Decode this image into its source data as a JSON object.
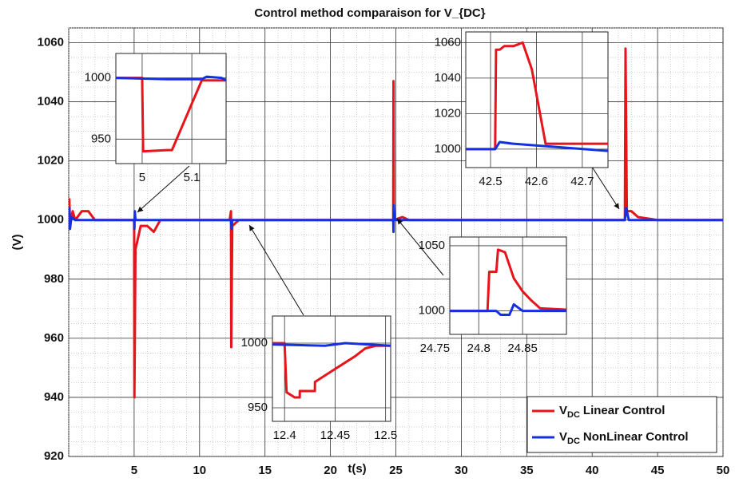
{
  "chart_data": [
    {
      "type": "line",
      "title": "Control method comparaison for V_{DC}",
      "xlabel": "t(s)",
      "ylabel": "(V)",
      "legend_symbol": {
        "main": "V",
        "sub": "DC"
      },
      "legend": "lower right",
      "grid": true,
      "xlim": [
        0,
        50
      ],
      "ylim": [
        920,
        1065
      ],
      "xticks": [
        5,
        10,
        15,
        20,
        25,
        30,
        35,
        40,
        45,
        50
      ],
      "yticks": [
        920,
        940,
        960,
        980,
        1000,
        1020,
        1040,
        1060
      ],
      "series": [
        {
          "name": "Linear Control",
          "color": "#e8141b",
          "x": [
            0,
            0.05,
            0.1,
            0.3,
            0.5,
            1,
            1.5,
            2,
            4.9,
            5,
            5.02,
            5.1,
            5.5,
            6,
            6.5,
            7,
            12.3,
            12.4,
            12.42,
            12.5,
            13,
            24.8,
            24.82,
            24.85,
            25.5,
            26,
            42.5,
            42.55,
            42.65,
            43,
            43.5,
            45,
            50
          ],
          "values": [
            1000,
            1007,
            998,
            1003,
            1000,
            1003,
            1003,
            1000,
            1000,
            1000,
            940,
            990,
            998,
            998,
            996,
            1000,
            1000,
            1003,
            957,
            998,
            1000,
            1000,
            1047,
            1000,
            1001,
            1000,
            1000,
            1058,
            1003,
            1003,
            1001,
            1000,
            1000
          ]
        },
        {
          "name": "NonLinear Control",
          "color": "#1530e0",
          "x": [
            0,
            0.05,
            0.1,
            0.2,
            0.5,
            5,
            5.02,
            5.05,
            5.1,
            12.4,
            12.45,
            12.5,
            24.8,
            24.82,
            24.85,
            24.9,
            42.5,
            42.6,
            42.8,
            50
          ],
          "values": [
            1000,
            1004,
            997,
            1001,
            1000,
            1000,
            997,
            1003,
            1000,
            1000,
            997,
            1000,
            1000,
            996,
            1005,
            1000,
            1000,
            1004,
            1000,
            1000
          ]
        }
      ]
    },
    {
      "type": "line",
      "xlim": [
        4.947,
        5.169
      ],
      "ylim": [
        930,
        1020
      ],
      "xticks": [
        5,
        5.1
      ],
      "yticks": [
        950,
        1000
      ],
      "grid": true,
      "series": [
        {
          "color": "#e8141b",
          "x": [
            4.947,
            5,
            5.002,
            5.05,
            5.06,
            5.12,
            5.169
          ],
          "values": [
            1000,
            1000,
            940,
            941,
            941,
            998,
            998
          ]
        },
        {
          "color": "#1530e0",
          "x": [
            4.947,
            5.05,
            5.12,
            5.13,
            5.16,
            5.169
          ],
          "values": [
            1000,
            999,
            999,
            1001,
            1000,
            998
          ]
        }
      ]
    },
    {
      "type": "line",
      "xlim": [
        42.446,
        42.756
      ],
      "ylim": [
        989.6,
        1066
      ],
      "xticks": [
        42.5,
        42.6,
        42.7
      ],
      "yticks": [
        1000,
        1020,
        1040,
        1060
      ],
      "grid": true,
      "series": [
        {
          "color": "#e8141b",
          "x": [
            42.446,
            42.51,
            42.512,
            42.52,
            42.53,
            42.55,
            42.57,
            42.59,
            42.62,
            42.756
          ],
          "values": [
            1000,
            1000,
            1056,
            1056,
            1058,
            1058,
            1060,
            1045,
            1003,
            1003
          ]
        },
        {
          "color": "#1530e0",
          "x": [
            42.446,
            42.51,
            42.52,
            42.55,
            42.756
          ],
          "values": [
            1000,
            1000,
            1004,
            1003,
            999
          ]
        }
      ]
    },
    {
      "type": "line",
      "xlim": [
        24.767,
        24.9
      ],
      "ylim": [
        982,
        1056.7
      ],
      "xticks": [
        24.75,
        24.8,
        24.85
      ],
      "yticks": [
        1000,
        1050
      ],
      "grid": true,
      "series": [
        {
          "color": "#e8141b",
          "x": [
            24.767,
            24.81,
            24.812,
            24.82,
            24.822,
            24.83,
            24.835,
            24.84,
            24.85,
            24.86,
            24.87,
            24.9
          ],
          "values": [
            1000,
            1000,
            1030,
            1030,
            1047,
            1045,
            1035,
            1025,
            1015,
            1008,
            1002,
            1001
          ]
        },
        {
          "color": "#1530e0",
          "x": [
            24.767,
            24.82,
            24.825,
            24.835,
            24.84,
            24.85,
            24.9
          ],
          "values": [
            1000,
            1000,
            997,
            997,
            1005,
            1000,
            1000
          ]
        }
      ]
    },
    {
      "type": "line",
      "xlim": [
        12.388,
        12.505
      ],
      "ylim": [
        939.5,
        1021
      ],
      "xticks": [
        12.4,
        12.45,
        12.5
      ],
      "yticks": [
        950,
        1000
      ],
      "grid": true,
      "series": [
        {
          "color": "#e8141b",
          "x": [
            12.388,
            12.4,
            12.402,
            12.41,
            12.415,
            12.4151,
            12.43,
            12.4301,
            12.44,
            12.45,
            12.46,
            12.47,
            12.48,
            12.49,
            12.505
          ],
          "values": [
            1000,
            1000,
            962,
            958,
            958,
            963,
            963,
            970,
            975,
            980,
            985,
            990,
            996,
            998,
            998
          ]
        },
        {
          "color": "#1530e0",
          "x": [
            12.388,
            12.44,
            12.45,
            12.46,
            12.505
          ],
          "values": [
            999,
            998,
            999,
            1000,
            998
          ]
        }
      ]
    }
  ]
}
